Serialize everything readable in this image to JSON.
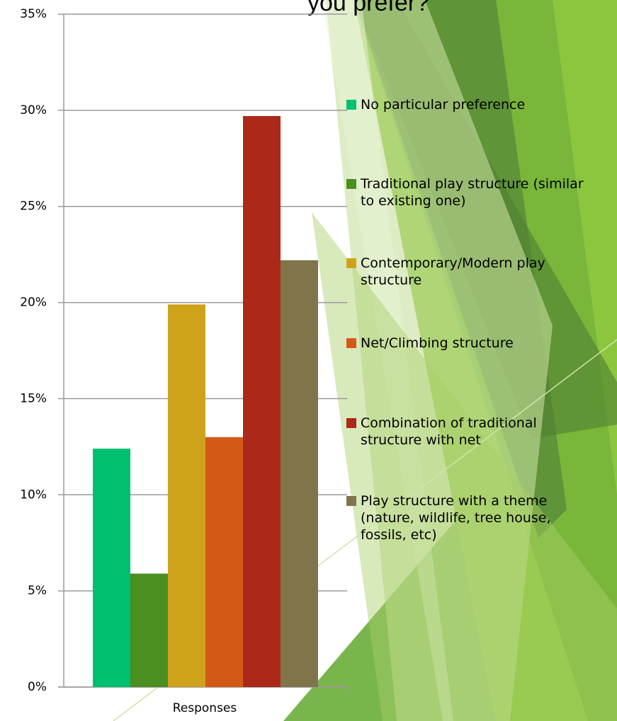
{
  "chart_data": {
    "type": "bar",
    "title": "you prefer?",
    "categories": [
      "Responses"
    ],
    "series": [
      {
        "name": "No particular preference",
        "color": "#00c06f",
        "values": [
          12.4
        ]
      },
      {
        "name": "Traditional play structure (similar to existing one)",
        "color": "#4a8f1f",
        "values": [
          5.9
        ]
      },
      {
        "name": "Contemporary/Modern play structure",
        "color": "#cfa21c",
        "values": [
          19.9
        ]
      },
      {
        "name": "Net/Climbing structure",
        "color": "#d35a16",
        "values": [
          13.0
        ]
      },
      {
        "name": "Combination of traditional structure with net",
        "color": "#ac2818",
        "values": [
          29.7
        ]
      },
      {
        "name": "Play structure with a theme (nature, wildlife, tree house, fossils, etc)",
        "color": "#80754a",
        "values": [
          22.2
        ]
      }
    ],
    "ylim": [
      0,
      35
    ],
    "yticks": [
      {
        "value": 0,
        "label": "0%"
      },
      {
        "value": 5,
        "label": "5%"
      },
      {
        "value": 10,
        "label": "10%"
      },
      {
        "value": 15,
        "label": "15%"
      },
      {
        "value": 20,
        "label": "20%"
      },
      {
        "value": 25,
        "label": "25%"
      },
      {
        "value": 30,
        "label": "30%"
      },
      {
        "value": 35,
        "label": "35%"
      }
    ],
    "grid": true
  }
}
